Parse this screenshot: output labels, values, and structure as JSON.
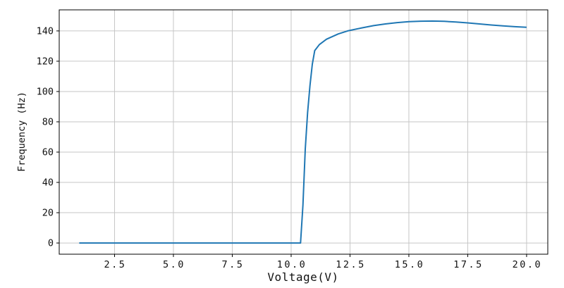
{
  "chart_data": {
    "type": "line",
    "title": "",
    "xlabel": "Voltage(V)",
    "ylabel": "Frequency (Hz)",
    "x_ticks": [
      2.5,
      5.0,
      7.5,
      10.0,
      12.5,
      15.0,
      17.5,
      20.0
    ],
    "x_tick_labels": [
      "2.5",
      "5.0",
      "7.5",
      "10.0",
      "12.5",
      "15.0",
      "17.5",
      "20.0"
    ],
    "y_ticks": [
      0,
      20,
      40,
      60,
      80,
      100,
      120,
      140
    ],
    "y_tick_labels": [
      "0",
      "20",
      "40",
      "60",
      "80",
      "100",
      "120",
      "140"
    ],
    "xlim": [
      0.15,
      20.9
    ],
    "ylim": [
      -7.4,
      153.9
    ],
    "grid": true,
    "legend": null,
    "colors": {
      "line": "#1f77b4",
      "grid": "#c6c6c6",
      "spine": "#000000",
      "text": "#111111",
      "background": "#ffffff"
    },
    "series": [
      {
        "name": "frequency-vs-voltage",
        "x": [
          1,
          2,
          3,
          4,
          5,
          6,
          7,
          8,
          9,
          10,
          10.4,
          10.5,
          10.6,
          10.7,
          10.8,
          10.9,
          11.0,
          11.2,
          11.5,
          12.0,
          12.4,
          13.0,
          13.5,
          14.0,
          14.5,
          15.0,
          15.5,
          16.0,
          16.5,
          17.0,
          17.5,
          18.0,
          18.5,
          19.0,
          19.5,
          20.0
        ],
        "y": [
          0,
          0,
          0,
          0,
          0,
          0,
          0,
          0,
          0,
          0,
          0,
          25,
          62,
          86,
          104,
          118,
          127,
          131,
          134.5,
          138,
          140,
          142,
          143.5,
          144.6,
          145.5,
          146.1,
          146.4,
          146.5,
          146.3,
          145.9,
          145.3,
          144.6,
          143.9,
          143.3,
          142.8,
          142.4
        ]
      }
    ]
  }
}
